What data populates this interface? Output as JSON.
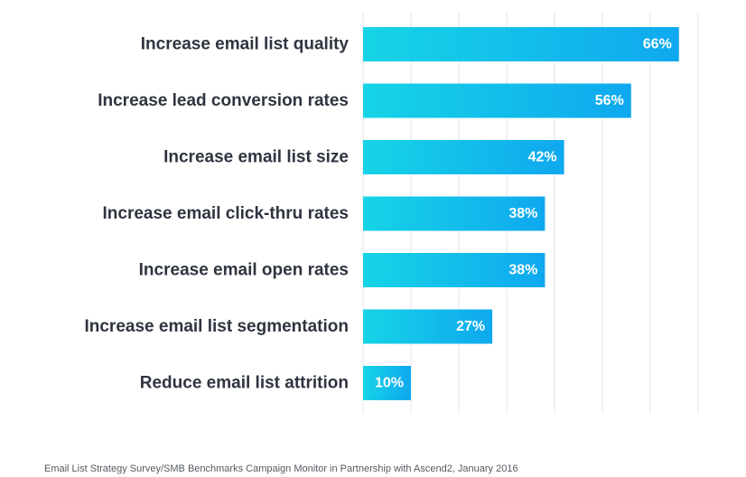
{
  "chart_data": {
    "type": "bar",
    "orientation": "horizontal",
    "categories": [
      "Increase email list quality",
      "Increase lead conversion rates",
      "Increase email list size",
      "Increase email click-thru rates",
      "Increase email open rates",
      "Increase email list segmentation",
      "Reduce email list attrition"
    ],
    "values": [
      66,
      56,
      42,
      38,
      38,
      27,
      10
    ],
    "value_labels": [
      "66%",
      "56%",
      "42%",
      "38%",
      "38%",
      "27%",
      "10%"
    ],
    "unit": "%",
    "xlim": [
      0,
      70
    ],
    "grid": true,
    "gradient_colors": [
      "#16d4e6",
      "#0fa8ef"
    ],
    "gridline_color": "#e4e6ea"
  },
  "footer": {
    "source": "Email List Strategy Survey/SMB Benchmarks Campaign Monitor in Partnership with Ascend2, January 2016"
  }
}
